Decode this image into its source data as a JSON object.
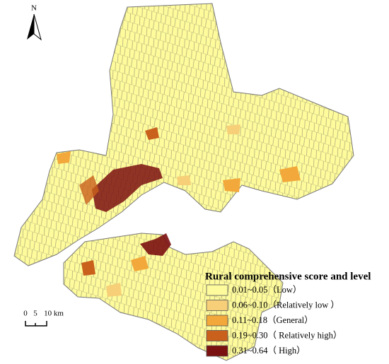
{
  "north_arrow": "N",
  "scale_bar": {
    "labels": [
      "0",
      "5",
      "10 km"
    ]
  },
  "legend": {
    "title": "Rural comprehensive score and level",
    "items": [
      {
        "label": "0.01~0.05（Low）",
        "color": "#fdfb9c"
      },
      {
        "label": "0.06~0.10（Relatively low ）",
        "color": "#f6cf78"
      },
      {
        "label": "0.11~0.18（General）",
        "color": "#f2a83a"
      },
      {
        "label": "0.19~0.30（ Relatively high）",
        "color": "#c9601c"
      },
      {
        "label": "0.31~0.64（ High）",
        "color": "#7b1010"
      }
    ]
  }
}
